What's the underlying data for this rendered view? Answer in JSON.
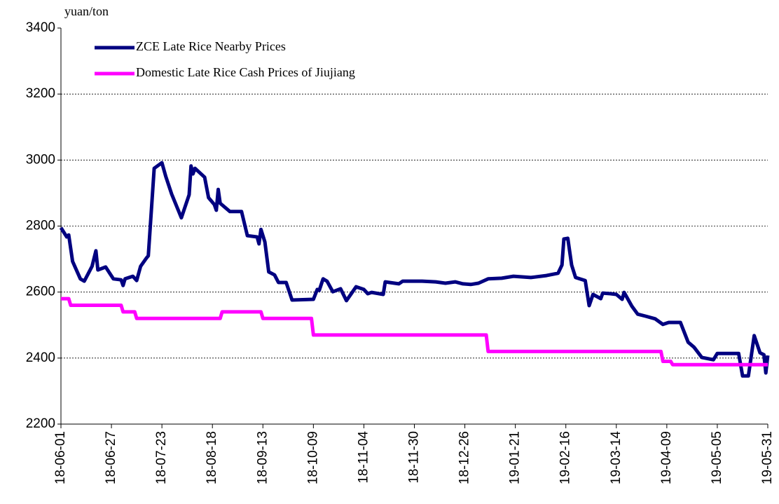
{
  "chart_data": {
    "type": "line",
    "y_label": "yuan/ton",
    "xlim": [
      "18-06-01",
      "19-05-31"
    ],
    "xticks": [
      "18-06-01",
      "18-06-27",
      "18-07-23",
      "18-08-18",
      "18-09-13",
      "18-10-09",
      "18-11-04",
      "18-11-30",
      "18-12-26",
      "19-01-21",
      "19-02-16",
      "19-03-14",
      "19-04-09",
      "19-05-05",
      "19-05-31"
    ],
    "ylim": [
      2200,
      3400
    ],
    "yticks": [
      2200,
      2400,
      2600,
      2800,
      3000,
      3200,
      3400
    ],
    "grid": true,
    "legend": "top-left",
    "series": [
      {
        "name": "ZCE Late Rice Nearby Prices",
        "color": "#000080",
        "x": [
          "18-06-01",
          "18-06-04",
          "18-06-05",
          "18-06-07",
          "18-06-11",
          "18-06-13",
          "18-06-17",
          "18-06-19",
          "18-06-20",
          "18-06-24",
          "18-06-28",
          "18-07-02",
          "18-07-03",
          "18-07-04",
          "18-07-08",
          "18-07-10",
          "18-07-12",
          "18-07-15",
          "18-07-16",
          "18-07-19",
          "18-07-23",
          "18-07-25",
          "18-07-28",
          "18-07-31",
          "18-08-02",
          "18-08-06",
          "18-08-07",
          "18-08-08",
          "18-08-09",
          "18-08-14",
          "18-08-16",
          "18-08-19",
          "18-08-20",
          "18-08-21",
          "18-08-22",
          "18-08-27",
          "18-09-02",
          "18-09-05",
          "18-09-10",
          "18-09-11",
          "18-09-12",
          "18-09-14",
          "18-09-16",
          "18-09-19",
          "18-09-21",
          "18-09-25",
          "18-09-28",
          "18-10-09",
          "18-10-11",
          "18-10-12",
          "18-10-14",
          "18-10-16",
          "18-10-19",
          "18-10-23",
          "18-10-26",
          "18-10-31",
          "18-11-04",
          "18-11-06",
          "18-11-08",
          "18-11-14",
          "18-11-15",
          "18-11-22",
          "18-11-24",
          "18-12-04",
          "18-12-11",
          "18-12-16",
          "18-12-21",
          "18-12-25",
          "18-12-29",
          "19-01-02",
          "19-01-07",
          "19-01-14",
          "19-01-20",
          "19-01-29",
          "19-02-06",
          "19-02-12",
          "19-02-14",
          "19-02-15",
          "19-02-17",
          "19-02-19",
          "19-02-21",
          "19-02-26",
          "19-02-28",
          "19-03-02",
          "19-03-06",
          "19-03-07",
          "19-03-11",
          "19-03-14",
          "19-03-17",
          "19-03-18",
          "19-03-22",
          "19-03-25",
          "19-03-29",
          "19-04-03",
          "19-04-07",
          "19-04-10",
          "19-04-16",
          "19-04-20",
          "19-04-23",
          "19-04-27",
          "19-05-03",
          "19-05-05",
          "19-05-16",
          "19-05-18",
          "19-05-21",
          "19-05-24",
          "19-05-27",
          "19-05-29",
          "19-05-30",
          "19-05-31"
        ],
        "values": [
          2795,
          2767,
          2773,
          2693,
          2640,
          2633,
          2678,
          2725,
          2667,
          2676,
          2640,
          2637,
          2620,
          2640,
          2648,
          2635,
          2678,
          2703,
          2710,
          2975,
          2992,
          2950,
          2897,
          2854,
          2825,
          2895,
          2982,
          2958,
          2975,
          2948,
          2886,
          2865,
          2848,
          2911,
          2869,
          2844,
          2844,
          2771,
          2767,
          2746,
          2790,
          2752,
          2661,
          2652,
          2629,
          2629,
          2576,
          2578,
          2608,
          2605,
          2640,
          2633,
          2601,
          2610,
          2574,
          2616,
          2608,
          2595,
          2599,
          2593,
          2631,
          2625,
          2633,
          2633,
          2631,
          2627,
          2631,
          2625,
          2623,
          2627,
          2640,
          2642,
          2648,
          2644,
          2650,
          2657,
          2682,
          2761,
          2763,
          2682,
          2644,
          2635,
          2559,
          2593,
          2580,
          2597,
          2595,
          2593,
          2578,
          2599,
          2557,
          2533,
          2527,
          2519,
          2502,
          2508,
          2508,
          2448,
          2433,
          2402,
          2395,
          2414,
          2414,
          2346,
          2346,
          2468,
          2416,
          2410,
          2355,
          2408
        ]
      },
      {
        "name": "Domestic Late Rice Cash Prices of Jiujiang",
        "color": "#ff00ff",
        "x": [
          "18-06-01",
          "18-06-05",
          "18-06-06",
          "18-07-02",
          "18-07-03",
          "18-07-09",
          "18-07-10",
          "18-08-22",
          "18-08-23",
          "18-09-12",
          "18-09-13",
          "18-10-08",
          "18-10-09",
          "19-01-06",
          "19-01-07",
          "19-04-06",
          "19-04-07",
          "19-04-11",
          "19-04-12",
          "19-05-31"
        ],
        "values": [
          2580,
          2580,
          2560,
          2560,
          2540,
          2540,
          2520,
          2520,
          2540,
          2540,
          2520,
          2520,
          2470,
          2470,
          2420,
          2420,
          2390,
          2390,
          2380,
          2380
        ]
      }
    ]
  }
}
